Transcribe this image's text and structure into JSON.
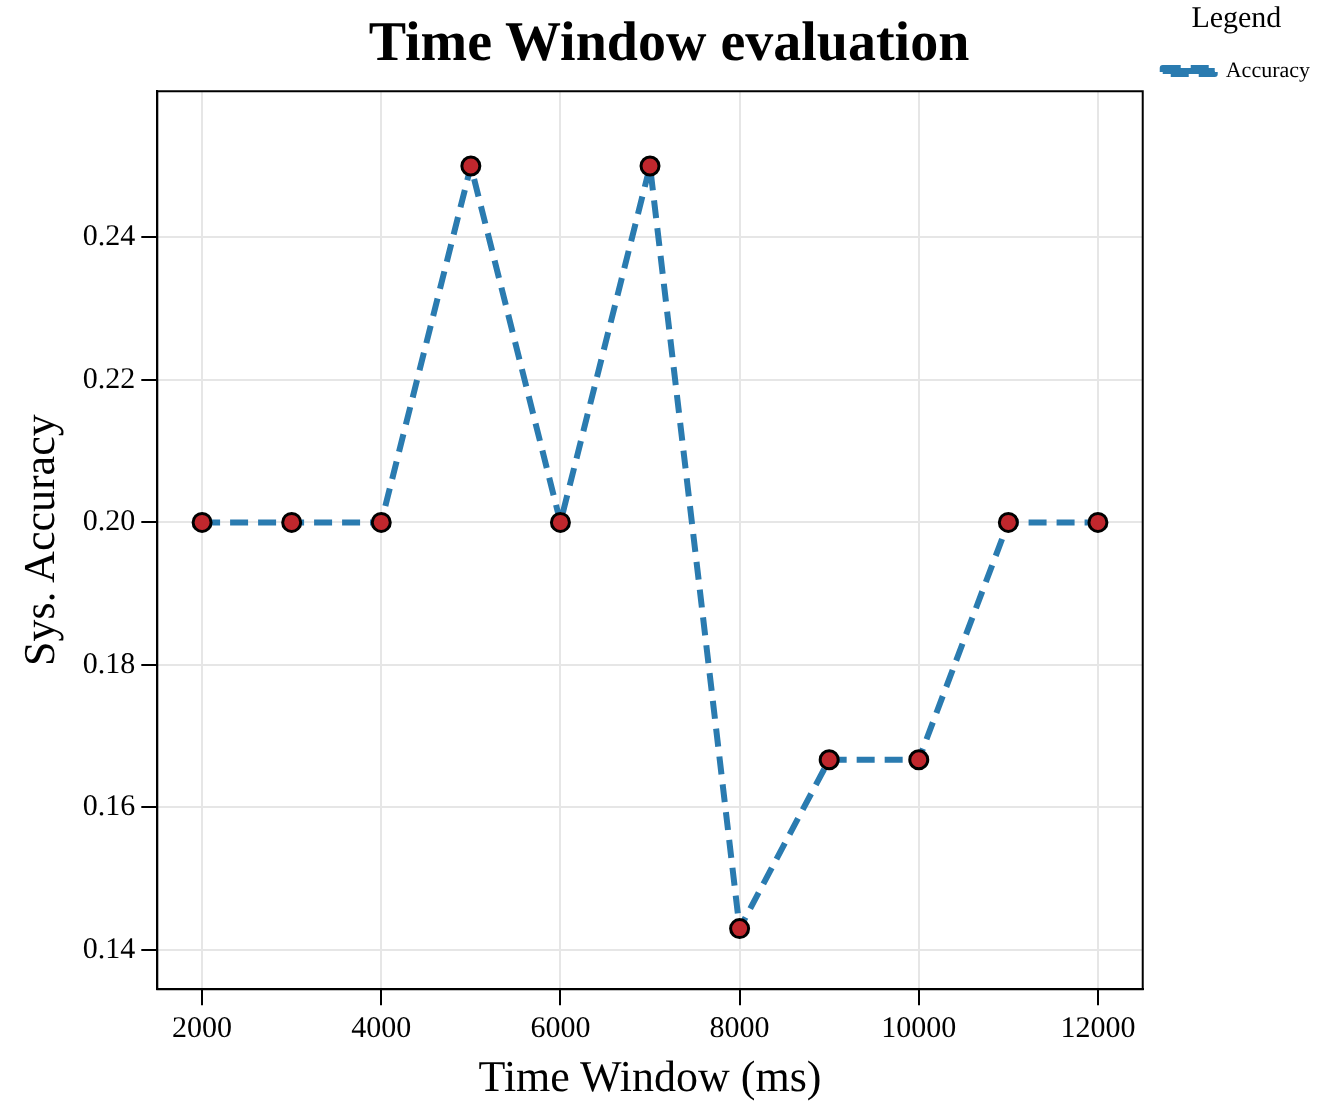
{
  "chart_data": {
    "type": "line",
    "title": "Time Window evaluation",
    "xlabel": "Time Window (ms)",
    "ylabel": "Sys. Accuracy",
    "legend_title": "Legend",
    "x": [
      2000,
      3000,
      4000,
      5000,
      6000,
      7000,
      8000,
      9000,
      10000,
      11000,
      12000
    ],
    "series": [
      {
        "name": "Accuracy",
        "color": "#2a7bb0",
        "values": [
          0.2,
          0.2,
          0.2,
          0.25,
          0.2,
          0.25,
          0.143,
          0.1667,
          0.1667,
          0.2,
          0.2
        ]
      }
    ],
    "xlim": [
      1500,
      12500
    ],
    "xticks": [
      2000,
      4000,
      6000,
      8000,
      10000,
      12000
    ],
    "ylim": [
      0.1345,
      0.2605
    ],
    "yticks": [
      0.14,
      0.16,
      0.18,
      {
        "value": 0.2,
        "label": "0.20"
      },
      0.22,
      0.24
    ],
    "grid": true,
    "legend": "top right",
    "marker": "circle",
    "line_style": "dashed"
  }
}
